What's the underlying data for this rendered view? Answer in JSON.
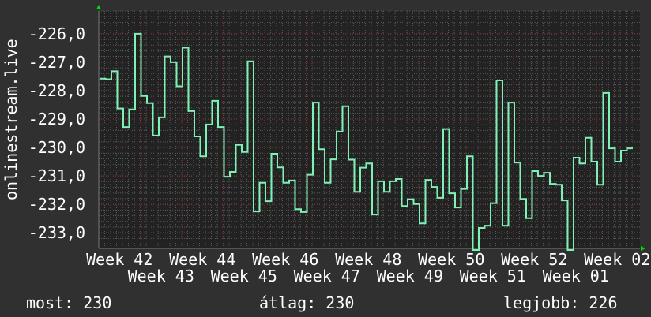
{
  "chart_data": {
    "type": "line",
    "step": true,
    "title": "",
    "xlabel": "",
    "ylabel": "onlinestream.live",
    "ylim": [
      -233.55,
      -225.2
    ],
    "yticks": [
      -226,
      -227,
      -228,
      -229,
      -230,
      -231,
      -232,
      -233
    ],
    "ytick_labels": [
      "-226,0",
      "-227,0",
      "-228,0",
      "-229,0",
      "-230,0",
      "-231,0",
      "-232,0",
      "-233,0"
    ],
    "xtick_labels": [
      "Week 42",
      "Week 43",
      "Week 44",
      "Week 45",
      "Week 46",
      "Week 47",
      "Week 48",
      "Week 49",
      "Week 50",
      "Week 51",
      "Week 52",
      "Week 01",
      "Week 02"
    ],
    "grid": true,
    "series": [
      {
        "color": "#7ef2b4",
        "values": [
          -227.58,
          -227.6,
          -227.32,
          -228.63,
          -229.28,
          -228.66,
          -226.0,
          -228.19,
          -228.44,
          -229.58,
          -228.94,
          -226.8,
          -227.0,
          -227.85,
          -226.49,
          -228.72,
          -229.61,
          -230.31,
          -229.19,
          -228.36,
          -229.28,
          -231.03,
          -230.86,
          -229.91,
          -230.16,
          -226.97,
          -232.25,
          -231.24,
          -231.89,
          -230.22,
          -230.7,
          -231.24,
          -231.16,
          -232.17,
          -232.27,
          -230.96,
          -228.42,
          -230.06,
          -231.24,
          -230.42,
          -229.44,
          -228.55,
          -230.43,
          -231.56,
          -230.71,
          -230.56,
          -232.36,
          -231.19,
          -231.56,
          -231.19,
          -231.11,
          -232.06,
          -231.82,
          -231.99,
          -232.67,
          -231.14,
          -231.39,
          -231.77,
          -229.35,
          -231.61,
          -232.11,
          -231.46,
          -230.31,
          -233.7,
          -232.83,
          -232.75,
          -231.96,
          -227.64,
          -232.75,
          -228.42,
          -230.53,
          -231.81,
          -232.49,
          -230.83,
          -231.0,
          -230.89,
          -231.28,
          -231.31,
          -231.86,
          -233.7,
          -230.36,
          -230.56,
          -229.66,
          -230.5,
          -231.31,
          -228.08,
          -230.03,
          -230.5,
          -230.11,
          -230.03
        ]
      }
    ]
  },
  "legend": {
    "current": "most: 230",
    "average": "átlag: 230",
    "max": "legjobb: 226"
  },
  "colors": {
    "background": "#303030",
    "plot_background": "#222222",
    "minor_grid": "#5a5a5a",
    "major_grid": "#8a3a3a",
    "arrow": "#00dd00"
  }
}
